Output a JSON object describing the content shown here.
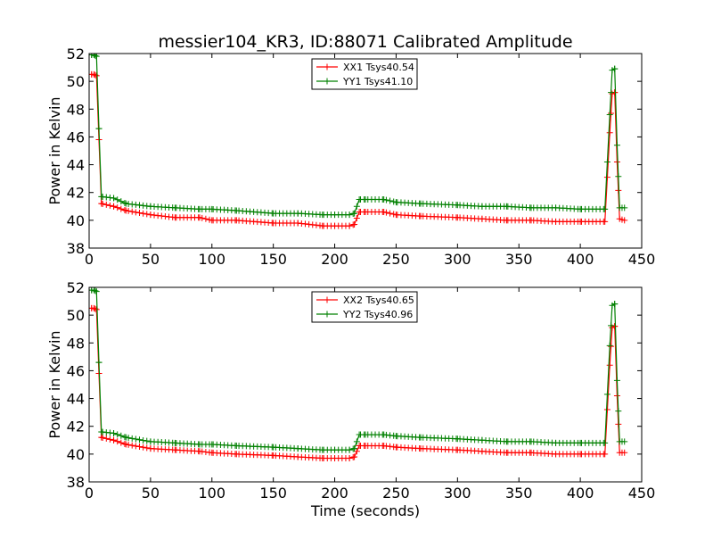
{
  "figure": {
    "title": "messier104_KR3, ID:88071 Calibrated Amplitude"
  },
  "chart_data": [
    {
      "type": "line",
      "title": "messier104_KR3, ID:88071 Calibrated Amplitude",
      "xlabel": "",
      "ylabel": "Power in Kelvin",
      "xlim": [
        0,
        450
      ],
      "ylim": [
        38,
        52
      ],
      "xticks": [
        0,
        50,
        100,
        150,
        200,
        250,
        300,
        350,
        400,
        450
      ],
      "yticks": [
        38,
        40,
        42,
        44,
        46,
        48,
        50,
        52
      ],
      "grid": false,
      "legend_position": "top-center",
      "marker": "+",
      "series": [
        {
          "name": "XX1 Tsys40.54",
          "color": "#ff0000",
          "x": [
            2,
            4,
            6,
            8,
            10,
            20,
            30,
            50,
            70,
            90,
            100,
            120,
            150,
            170,
            190,
            200,
            212,
            216,
            220,
            225,
            240,
            250,
            270,
            300,
            320,
            340,
            360,
            380,
            400,
            420,
            424,
            426,
            428,
            430,
            432,
            436
          ],
          "y": [
            50.5,
            50.5,
            50.4,
            45.8,
            41.2,
            41.0,
            40.7,
            40.4,
            40.2,
            40.2,
            40.0,
            40.0,
            39.8,
            39.8,
            39.6,
            39.6,
            39.6,
            39.7,
            40.6,
            40.6,
            40.6,
            40.4,
            40.3,
            40.2,
            40.1,
            40.0,
            40.0,
            39.9,
            39.9,
            39.9,
            46.3,
            49.1,
            49.2,
            44.2,
            40.1,
            40.0
          ]
        },
        {
          "name": "YY1 Tsys41.10",
          "color": "#008000",
          "x": [
            2,
            4,
            6,
            8,
            10,
            20,
            30,
            50,
            70,
            90,
            100,
            120,
            150,
            170,
            190,
            200,
            212,
            216,
            220,
            225,
            240,
            250,
            270,
            300,
            320,
            340,
            360,
            380,
            400,
            420,
            424,
            426,
            428,
            430,
            432,
            436
          ],
          "y": [
            51.9,
            51.9,
            51.8,
            46.6,
            41.7,
            41.6,
            41.2,
            41.0,
            40.9,
            40.8,
            40.8,
            40.7,
            40.5,
            40.5,
            40.4,
            40.4,
            40.4,
            40.5,
            41.5,
            41.5,
            41.5,
            41.3,
            41.2,
            41.1,
            41.0,
            41.0,
            40.9,
            40.9,
            40.8,
            40.8,
            47.6,
            50.8,
            50.9,
            45.4,
            40.9,
            40.9
          ]
        }
      ]
    },
    {
      "type": "line",
      "title": "",
      "xlabel": "Time (seconds)",
      "ylabel": "Power in Kelvin",
      "xlim": [
        0,
        450
      ],
      "ylim": [
        38,
        52
      ],
      "xticks": [
        0,
        50,
        100,
        150,
        200,
        250,
        300,
        350,
        400,
        450
      ],
      "yticks": [
        38,
        40,
        42,
        44,
        46,
        48,
        50,
        52
      ],
      "grid": false,
      "legend_position": "top-center",
      "marker": "+",
      "series": [
        {
          "name": "XX2 Tsys40.65",
          "color": "#ff0000",
          "x": [
            2,
            4,
            6,
            8,
            10,
            20,
            30,
            50,
            70,
            90,
            100,
            120,
            150,
            170,
            190,
            200,
            212,
            216,
            220,
            225,
            240,
            250,
            270,
            300,
            320,
            340,
            360,
            380,
            400,
            420,
            424,
            426,
            428,
            430,
            432,
            436
          ],
          "y": [
            50.5,
            50.5,
            50.4,
            45.8,
            41.2,
            41.0,
            40.7,
            40.4,
            40.3,
            40.2,
            40.1,
            40.0,
            39.9,
            39.8,
            39.7,
            39.7,
            39.7,
            39.8,
            40.6,
            40.6,
            40.6,
            40.5,
            40.4,
            40.3,
            40.2,
            40.1,
            40.1,
            40.0,
            40.0,
            40.0,
            46.4,
            49.1,
            49.2,
            44.2,
            40.1,
            40.1
          ]
        },
        {
          "name": "YY2 Tsys40.96",
          "color": "#008000",
          "x": [
            2,
            4,
            6,
            8,
            10,
            20,
            30,
            50,
            70,
            90,
            100,
            120,
            150,
            170,
            190,
            200,
            212,
            216,
            220,
            225,
            240,
            250,
            270,
            300,
            320,
            340,
            360,
            380,
            400,
            420,
            424,
            426,
            428,
            430,
            432,
            436
          ],
          "y": [
            51.8,
            51.8,
            51.7,
            46.6,
            41.6,
            41.5,
            41.2,
            40.9,
            40.8,
            40.7,
            40.7,
            40.6,
            40.5,
            40.4,
            40.3,
            40.3,
            40.3,
            40.4,
            41.4,
            41.4,
            41.4,
            41.3,
            41.2,
            41.1,
            41.0,
            40.9,
            40.9,
            40.8,
            40.8,
            40.8,
            47.8,
            50.7,
            50.8,
            45.3,
            40.9,
            40.9
          ]
        }
      ]
    }
  ]
}
